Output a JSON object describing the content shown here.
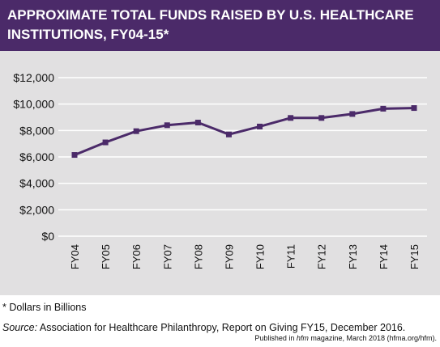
{
  "header": {
    "title": "APPROXIMATE TOTAL FUNDS RAISED BY U.S. HEALTHCARE INSTITUTIONS, FY04-15*"
  },
  "chart_data": {
    "type": "line",
    "title": "APPROXIMATE TOTAL FUNDS RAISED BY U.S. HEALTHCARE INSTITUTIONS, FY04-15*",
    "categories": [
      "FY04",
      "FY05",
      "FY06",
      "FY07",
      "FY08",
      "FY09",
      "FY10",
      "FY11",
      "FY12",
      "FY13",
      "FY14",
      "FY15"
    ],
    "values": [
      6150,
      7100,
      7950,
      8400,
      8600,
      7700,
      8300,
      8950,
      8950,
      9250,
      9650,
      9700
    ],
    "y_ticks": [
      0,
      2000,
      4000,
      6000,
      8000,
      10000,
      12000
    ],
    "y_tick_labels": [
      "$0",
      "$2,000",
      "$4,000",
      "$6,000",
      "$8,000",
      "$10,000",
      "$12,000"
    ],
    "ylim": [
      0,
      12000
    ],
    "grid": true,
    "legend": "none",
    "line_color": "#4b2a69",
    "xlabel": "",
    "ylabel": ""
  },
  "footnotes": {
    "dollars_note": "* Dollars in Billions",
    "source_label": "Source:",
    "source_text": " Association for Healthcare Philanthropy, Report on Giving FY15, December 2016.",
    "published_prefix": "Published in ",
    "published_magazine": "hfm",
    "published_suffix": " magazine, March 2018 (hfma.org/hfm)."
  },
  "colors": {
    "header_bg": "#4b2a69",
    "panel_bg": "#e1e0e1",
    "gridline": "#ffffff"
  }
}
